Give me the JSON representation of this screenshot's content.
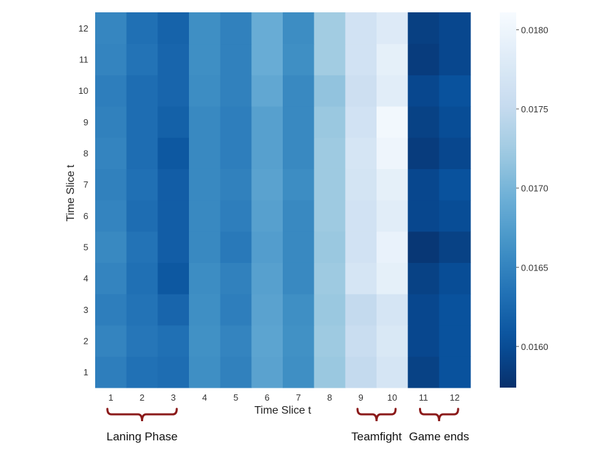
{
  "chart_data": {
    "type": "heatmap",
    "xlabel": "Time Slice t",
    "ylabel": "Time Slice t",
    "x_categories": [
      "1",
      "2",
      "3",
      "4",
      "5",
      "6",
      "7",
      "8",
      "9",
      "10",
      "11",
      "12"
    ],
    "y_categories": [
      "1",
      "2",
      "3",
      "4",
      "5",
      "6",
      "7",
      "8",
      "9",
      "10",
      "11",
      "12"
    ],
    "values": [
      [
        0.01645,
        0.01633,
        0.0163,
        0.0166,
        0.01648,
        0.0168,
        0.0166,
        0.0172,
        0.0175,
        0.0177,
        0.0159,
        0.01605
      ],
      [
        0.0165,
        0.01638,
        0.01632,
        0.01662,
        0.0165,
        0.01682,
        0.01662,
        0.01722,
        0.01755,
        0.01775,
        0.01595,
        0.01605
      ],
      [
        0.01645,
        0.01635,
        0.01622,
        0.0166,
        0.01645,
        0.0168,
        0.0166,
        0.0172,
        0.0175,
        0.0177,
        0.01595,
        0.01605
      ],
      [
        0.0165,
        0.01632,
        0.0161,
        0.01658,
        0.01648,
        0.01678,
        0.01655,
        0.01722,
        0.0177,
        0.0179,
        0.0159,
        0.016
      ],
      [
        0.01655,
        0.01635,
        0.01615,
        0.01655,
        0.0164,
        0.01675,
        0.01655,
        0.0172,
        0.01765,
        0.01795,
        0.0158,
        0.0159
      ],
      [
        0.0165,
        0.0163,
        0.01615,
        0.01655,
        0.01645,
        0.01678,
        0.01655,
        0.01722,
        0.01765,
        0.01785,
        0.01595,
        0.016
      ],
      [
        0.01648,
        0.01632,
        0.01615,
        0.01655,
        0.01648,
        0.0168,
        0.01658,
        0.01722,
        0.01768,
        0.0179,
        0.01595,
        0.01605
      ],
      [
        0.0165,
        0.0163,
        0.0161,
        0.01655,
        0.01645,
        0.01678,
        0.01655,
        0.01722,
        0.0177,
        0.018,
        0.01585,
        0.01595
      ],
      [
        0.01648,
        0.0163,
        0.01618,
        0.01655,
        0.01645,
        0.01678,
        0.01655,
        0.0172,
        0.01765,
        0.01805,
        0.0159,
        0.016
      ],
      [
        0.01645,
        0.0163,
        0.01622,
        0.01658,
        0.01648,
        0.01685,
        0.01655,
        0.01715,
        0.0176,
        0.01785,
        0.01595,
        0.01605
      ],
      [
        0.0165,
        0.01635,
        0.01622,
        0.0166,
        0.01648,
        0.0169,
        0.0166,
        0.01725,
        0.01765,
        0.0179,
        0.01585,
        0.01595
      ],
      [
        0.01652,
        0.01632,
        0.0162,
        0.0166,
        0.01648,
        0.0169,
        0.01658,
        0.01725,
        0.01765,
        0.0178,
        0.01588,
        0.01595
      ]
    ],
    "vmin": 0.01574,
    "vmax": 0.01811,
    "colormap": "Blues_r",
    "colorbar_ticks": [
      "0.0160",
      "0.0165",
      "0.0170",
      "0.0175",
      "0.0180"
    ],
    "colorbar_tick_values": [
      0.016,
      0.0165,
      0.017,
      0.0175,
      0.018
    ]
  },
  "annotations": [
    {
      "label": "Laning Phase",
      "from": "1",
      "to": "3"
    },
    {
      "label": "Teamfight",
      "from": "9",
      "to": "10"
    },
    {
      "label": "Game ends",
      "from": "11",
      "to": "12"
    }
  ],
  "colors": {
    "bracket": "#8b1a1a",
    "tick_text": "#333333"
  }
}
